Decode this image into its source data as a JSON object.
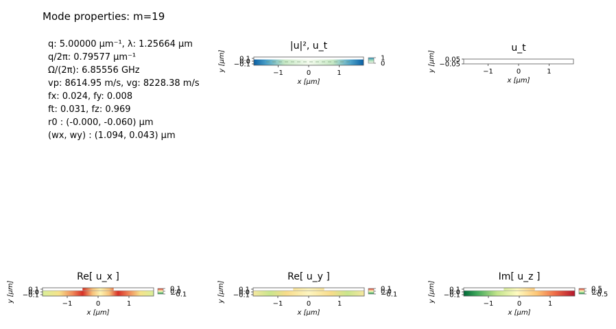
{
  "figure_title": "Mode properties: m=19",
  "properties": [
    "q: 5.00000 µm⁻¹, λ:  1.25664 µm",
    "q/2π: 0.79577 µm⁻¹",
    "Ω/(2π): 6.85556 GHz",
    "vp: 8614.95 m/s, vg: 8228.38 m/s",
    "fx:  0.024, fy: 0.008",
    "ft:  0.031, fz: 0.969",
    "r0 :  (-0.000, -0.060) µm",
    "(wx, wy) :  (1.094, 0.043) µm"
  ],
  "chart_data": [
    {
      "type": "heatmap",
      "title": "|u|², u_t",
      "xlabel": "x [µm]",
      "ylabel": "y [µm]",
      "xlim": [
        -1.8,
        1.8
      ],
      "ylim": [
        -0.15,
        0.15
      ],
      "x_ticks": [
        -1,
        0,
        1
      ],
      "y_ticks": [
        0.1,
        0.0,
        -0.1
      ],
      "colorbar_ticks": [
        "1",
        "0"
      ],
      "colormap": "GnBu"
    },
    {
      "type": "heatmap",
      "title": "u_t",
      "xlabel": "x [µm]",
      "ylabel": "y [µm]",
      "xlim": [
        -1.8,
        1.8
      ],
      "ylim": [
        -0.05,
        0.05
      ],
      "x_ticks": [
        -1,
        0,
        1
      ],
      "y_ticks": [
        0.05,
        -0.05
      ]
    },
    {
      "type": "heatmap",
      "title": "Re[ u_x ]",
      "xlabel": "x [µm]",
      "ylabel": "y [µm]",
      "xlim": [
        -1.8,
        1.8
      ],
      "ylim": [
        -0.15,
        0.15
      ],
      "x_ticks": [
        -1,
        0,
        1
      ],
      "y_ticks": [
        0.1,
        0.0,
        -0.1
      ],
      "colorbar_ticks": [
        "0.1",
        "0.0",
        "-0.1"
      ],
      "colormap": "RdYlGn"
    },
    {
      "type": "heatmap",
      "title": "Re[ u_y ]",
      "xlabel": "x [µm]",
      "ylabel": "y [µm]",
      "xlim": [
        -1.8,
        1.8
      ],
      "ylim": [
        -0.15,
        0.15
      ],
      "x_ticks": [
        -1,
        0,
        1
      ],
      "y_ticks": [
        0.1,
        0.0,
        -0.1
      ],
      "colorbar_ticks": [
        "0.1",
        "0.0",
        "-0.1"
      ],
      "colormap": "RdYlGn"
    },
    {
      "type": "heatmap",
      "title": "Im[ u_z ]",
      "xlabel": "x [µm]",
      "ylabel": "y [µm]",
      "xlim": [
        -1.8,
        1.8
      ],
      "ylim": [
        -0.15,
        0.15
      ],
      "x_ticks": [
        -1,
        0,
        1
      ],
      "y_ticks": [
        0.1,
        0.0,
        -0.1
      ],
      "colorbar_ticks": [
        "0.5",
        "0.0",
        "-0.5"
      ],
      "colormap": "RdYlGn"
    }
  ]
}
